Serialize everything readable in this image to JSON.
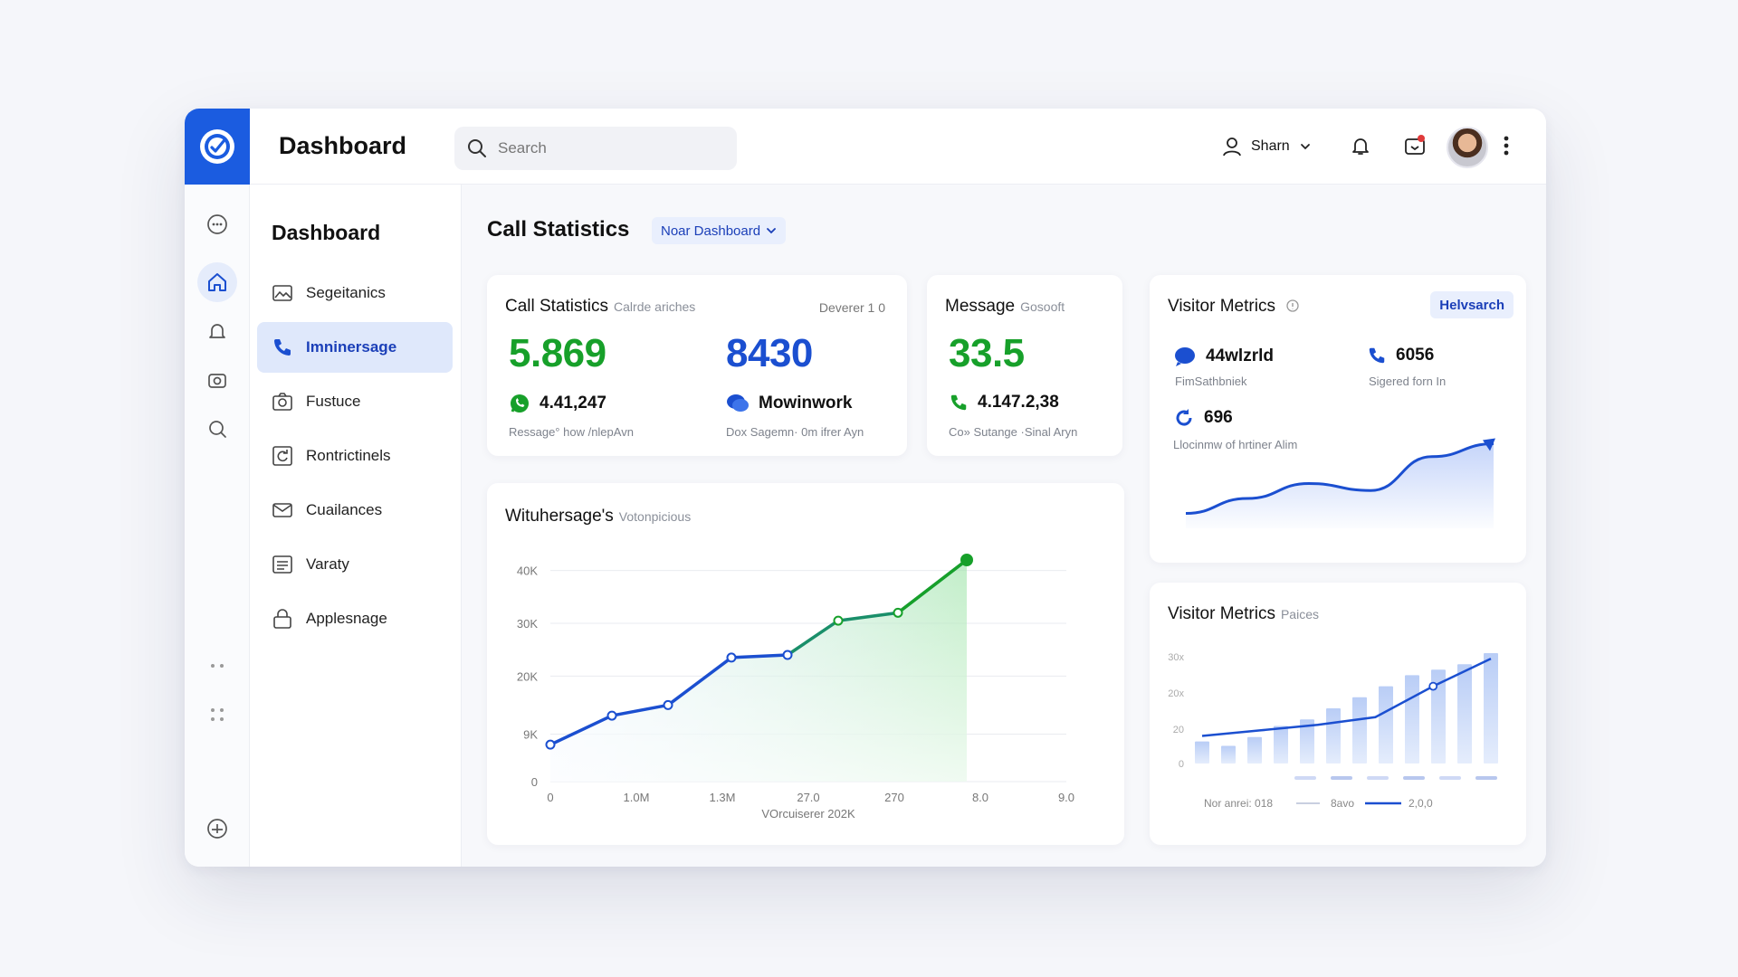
{
  "header": {
    "app_title": "Dashboard",
    "search_placeholder": "Search",
    "user_name": "Sharn"
  },
  "sidebar": {
    "title": "Dashboard",
    "items": [
      {
        "label": "Segeitanics",
        "icon": "image-icon"
      },
      {
        "label": "Imninersage",
        "icon": "phone-icon",
        "active": true
      },
      {
        "label": "Fustuce",
        "icon": "camera-icon"
      },
      {
        "label": "Rontrictinels",
        "icon": "refresh-icon"
      },
      {
        "label": "Cuailances",
        "icon": "mail-icon"
      },
      {
        "label": "Varaty",
        "icon": "list-icon"
      },
      {
        "label": "Applesnage",
        "icon": "lock-icon"
      }
    ]
  },
  "main": {
    "title": "Call Statistics",
    "dropdown_label": "Noar Dashboard"
  },
  "call_stats_card": {
    "title": "Call Statistics",
    "subtitle": "Calrde ariches",
    "right_label": "Deverer 1 0",
    "value_left": "5.869",
    "value_right": "8430",
    "metric_left": "4.41,247",
    "metric_left_caption": "Ressage° how /nlepAvn",
    "metric_right": "Mowinwork",
    "metric_right_caption": "Dox Sagemn· 0m ifrer Ayn"
  },
  "message_card": {
    "title": "Message",
    "subtitle": "Gosooft",
    "value": "33.5",
    "metric": "4.147.2,38",
    "metric_caption": "Co» Sutange ·Sinal Aryn"
  },
  "visitor_card_top": {
    "title": "Visitor Metrics",
    "badge": "Helvsarch",
    "stat1_value": "44wlzrld",
    "stat1_caption": "FimSathbniek",
    "stat2_value": "6056",
    "stat2_caption": "Sigered forn In",
    "stat3_value": "696",
    "stat3_caption": "Llocinmw of hrtiner Alim"
  },
  "main_chart_card": {
    "title": "Wituhersage's",
    "subtitle": "Votonpicious"
  },
  "visitor_card_bottom": {
    "title": "Visitor Metrics",
    "subtitle": "Paices",
    "legend": [
      "Nor anrei: 018",
      "8avo",
      "2,0,0"
    ]
  },
  "colors": {
    "accent_blue": "#1b4fd0",
    "accent_green": "#17a02a",
    "logo_blue": "#1b5ce0"
  },
  "chart_data": [
    {
      "type": "line",
      "xlabel": "VOrcuiserer 202K",
      "x_ticks": [
        "0",
        "1.0M",
        "1.3M",
        "27.0",
        "270",
        "8.0",
        "9.0"
      ],
      "y_ticks": [
        "0",
        "9K",
        "20K",
        "30K",
        "40K"
      ],
      "ylim": [
        0,
        42000
      ],
      "series": [
        {
          "values": [
            7000,
            12500,
            14500,
            23500,
            24000,
            30500,
            32000,
            42000
          ]
        }
      ],
      "grid": true
    },
    {
      "type": "area",
      "series": [
        {
          "values": [
            0.15,
            0.3,
            0.45,
            0.38,
            0.72,
            0.85
          ]
        }
      ]
    },
    {
      "type": "bar",
      "y_ticks": [
        "0",
        "20",
        "20x",
        "30x"
      ],
      "bar_values": [
        0.2,
        0.16,
        0.24,
        0.34,
        0.4,
        0.5,
        0.6,
        0.7,
        0.8,
        0.85,
        0.9,
        1.0
      ],
      "series": [
        {
          "values": [
            0.25,
            0.3,
            0.35,
            0.42,
            0.7,
            0.95
          ]
        }
      ]
    }
  ]
}
